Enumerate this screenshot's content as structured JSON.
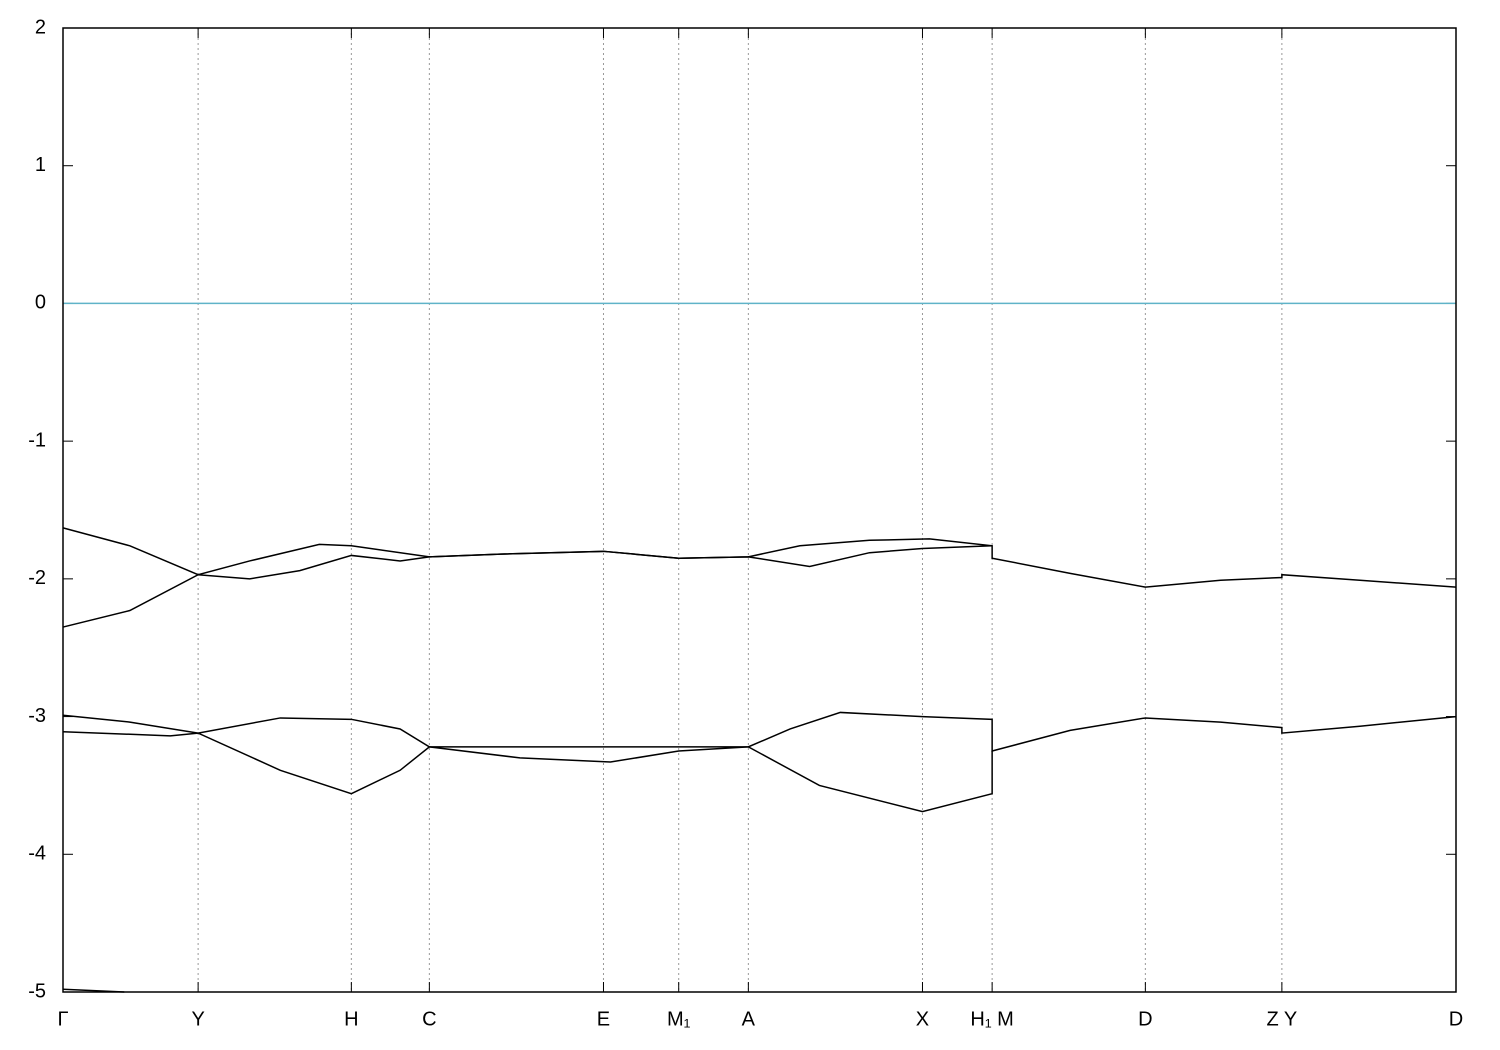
{
  "chart_data": {
    "type": "line",
    "xlim": [
      0,
      1
    ],
    "ylim": [
      -5,
      2
    ],
    "yticks": [
      -5,
      -4,
      -3,
      -2,
      -1,
      0,
      1,
      2
    ],
    "xticks": [
      {
        "value": 0,
        "label": "Γ"
      },
      {
        "value": 0.097,
        "label": "Y"
      },
      {
        "value": 0.207,
        "label": "H"
      },
      {
        "value": 0.263,
        "label": "C"
      },
      {
        "value": 0.388,
        "label": "E"
      },
      {
        "value": 0.442,
        "label": "M₁"
      },
      {
        "value": 0.492,
        "label": "A"
      },
      {
        "value": 0.617,
        "label": "X"
      },
      {
        "value": 0.667,
        "label": "H₁ M"
      },
      {
        "value": 0.777,
        "label": "D"
      },
      {
        "value": 0.875,
        "label": "Z Y"
      },
      {
        "value": 1,
        "label": "D"
      }
    ],
    "grid": true,
    "reference_line": {
      "value": 0,
      "color": "#5fb3c8"
    },
    "series": [
      {
        "color": "#000000",
        "x": [
          0,
          0.048,
          0.097,
          0.134,
          0.184,
          0.207,
          0.263,
          0.314,
          0.388,
          0.442,
          0.492,
          0.529,
          0.579,
          0.622,
          0.667,
          0.667,
          0.723,
          0.777,
          0.831,
          0.875,
          0.875,
          0.931,
          1
        ],
        "values": [
          -1.63,
          -1.76,
          -1.97,
          -1.87,
          -1.75,
          -1.76,
          -1.84,
          -1.82,
          -1.8,
          -1.85,
          -1.84,
          -1.76,
          -1.72,
          -1.71,
          -1.76,
          -1.85,
          -1.96,
          -2.06,
          -2.01,
          -1.99,
          -1.97,
          -2.01,
          -2.06
        ]
      },
      {
        "color": "#000000",
        "x": [
          0,
          0.048,
          0.097,
          0.134,
          0.17,
          0.207,
          0.242,
          0.263,
          0.314,
          0.388,
          0.442,
          0.492,
          0.536,
          0.579,
          0.617,
          0.667
        ],
        "values": [
          -2.35,
          -2.23,
          -1.97,
          -2.0,
          -1.94,
          -1.83,
          -1.87,
          -1.84,
          -1.82,
          -1.8,
          -1.85,
          -1.84,
          -1.91,
          -1.81,
          -1.78,
          -1.76
        ]
      },
      {
        "color": "#000000",
        "x": [
          0,
          0.048,
          0.097,
          0.156,
          0.207,
          0.242,
          0.263,
          0.328,
          0.393,
          0.442,
          0.492,
          0.522,
          0.558,
          0.617,
          0.667,
          0.667,
          0.723,
          0.777,
          0.831,
          0.875,
          0.875,
          0.931,
          1
        ],
        "values": [
          -2.99,
          -3.04,
          -3.12,
          -3.01,
          -3.02,
          -3.09,
          -3.22,
          -3.3,
          -3.33,
          -3.25,
          -3.22,
          -3.09,
          -2.97,
          -3.0,
          -3.02,
          -3.25,
          -3.1,
          -3.01,
          -3.04,
          -3.08,
          -3.12,
          -3.07,
          -3.0
        ]
      },
      {
        "color": "#000000",
        "x": [
          0,
          0.077,
          0.097,
          0.156,
          0.207,
          0.242,
          0.263,
          0.492,
          0.543,
          0.617,
          0.667,
          0.667
        ],
        "values": [
          -3.11,
          -3.14,
          -3.12,
          -3.39,
          -3.56,
          -3.39,
          -3.22,
          -3.22,
          -3.5,
          -3.69,
          -3.56,
          -3.25
        ]
      },
      {
        "color": "#000000",
        "x": [
          0,
          0.044
        ],
        "values": [
          -4.98,
          -5.0
        ]
      }
    ]
  }
}
